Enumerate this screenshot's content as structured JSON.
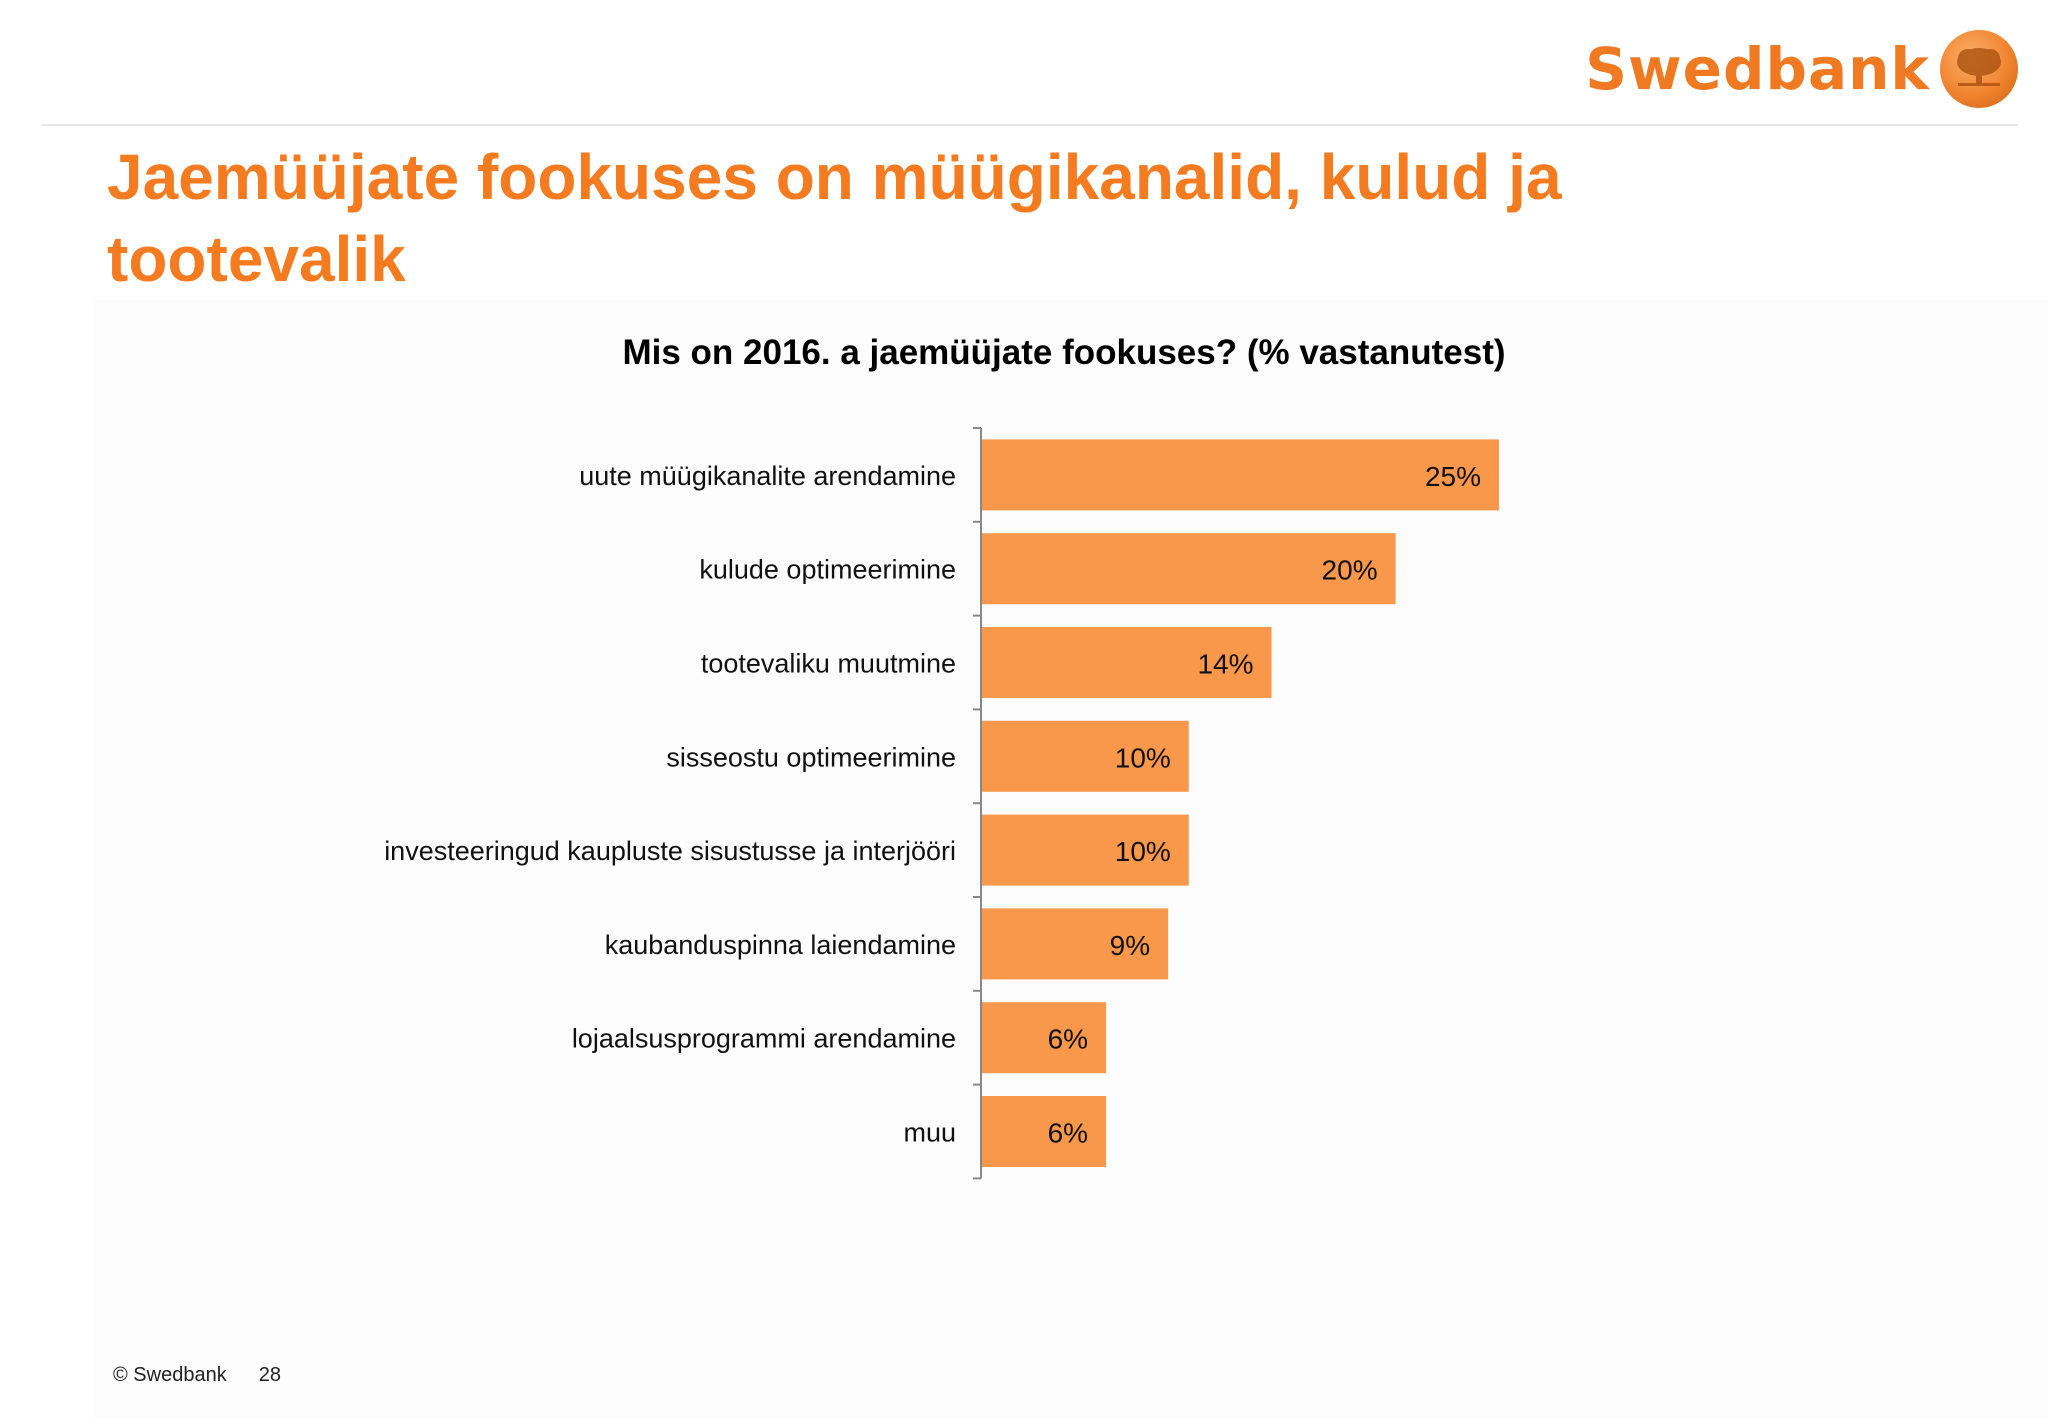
{
  "brand": {
    "name": "Swedbank",
    "logo_icon": "oak-tree-emblem-icon",
    "accent": "#f47b20",
    "bar_color": "#f9984a"
  },
  "slide": {
    "title": "Jaemüüjate fookuses on müügikanalid, kulud ja tootevalik"
  },
  "chart_data": {
    "type": "bar",
    "orientation": "horizontal",
    "title": "Mis on 2016. a jaemüüjate fookuses? (% vastanutest)",
    "categories": [
      "uute müügikanalite arendamine",
      "kulude optimeerimine",
      "tootevaliku muutmine",
      "sisseostu optimeerimine",
      "investeeringud kaupluste sisustusse ja interjööri",
      "kaubanduspinna laiendamine",
      "lojaalsusprogrammi arendamine",
      "muu"
    ],
    "values": [
      25,
      20,
      14,
      10,
      10,
      9,
      6,
      6
    ],
    "value_labels": [
      "25%",
      "20%",
      "14%",
      "10%",
      "10%",
      "9%",
      "6%",
      "6%"
    ],
    "unit": "%",
    "xlim": [
      0,
      25
    ],
    "legend": "none",
    "grid": false
  },
  "footer": {
    "copyright": "© Swedbank",
    "page_number": "28"
  }
}
